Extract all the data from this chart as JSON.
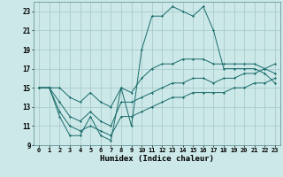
{
  "title": "",
  "xlabel": "Humidex (Indice chaleur)",
  "bg_color": "#cce8e8",
  "grid_color": "#aacccc",
  "line_color": "#1a6b6b",
  "x_hours": [
    0,
    1,
    2,
    3,
    4,
    5,
    6,
    7,
    8,
    9,
    10,
    11,
    12,
    13,
    14,
    15,
    16,
    17,
    18,
    19,
    20,
    21,
    22,
    23
  ],
  "humidex": [
    15,
    15,
    12,
    10,
    10,
    12,
    10,
    9.5,
    15,
    11,
    19,
    22.5,
    22.5,
    23.5,
    23,
    22.5,
    23.5,
    21,
    17,
    17,
    17,
    17,
    16.5,
    15.5
  ],
  "min_line": [
    15,
    15,
    12.5,
    11,
    10.5,
    11,
    10.5,
    10,
    12,
    12,
    12.5,
    13,
    13.5,
    14,
    14,
    14.5,
    14.5,
    14.5,
    14.5,
    15,
    15,
    15.5,
    15.5,
    16
  ],
  "mid_line": [
    15,
    15,
    13.5,
    12,
    11.5,
    12.5,
    11.5,
    11,
    13.5,
    13.5,
    14,
    14.5,
    15,
    15.5,
    15.5,
    16,
    16,
    15.5,
    16,
    16,
    16.5,
    16.5,
    17,
    17.5
  ],
  "max_line": [
    15,
    15,
    15,
    14,
    13.5,
    14.5,
    13.5,
    13,
    15,
    14.5,
    16,
    17,
    17.5,
    17.5,
    18,
    18,
    18,
    17.5,
    17.5,
    17.5,
    17.5,
    17.5,
    17,
    16.5
  ],
  "ylim": [
    9,
    24
  ],
  "xlim": [
    -0.5,
    23.5
  ],
  "yticks": [
    9,
    11,
    13,
    15,
    17,
    19,
    21,
    23
  ],
  "xtick_labels": [
    "0",
    "1",
    "2",
    "3",
    "4",
    "5",
    "6",
    "7",
    "8",
    "9",
    "10",
    "11",
    "12",
    "13",
    "14",
    "15",
    "16",
    "17",
    "18",
    "19",
    "20",
    "21",
    "22",
    "23"
  ],
  "xtick_fontsize": 5.0,
  "ytick_fontsize": 5.5,
  "xlabel_fontsize": 6.5
}
